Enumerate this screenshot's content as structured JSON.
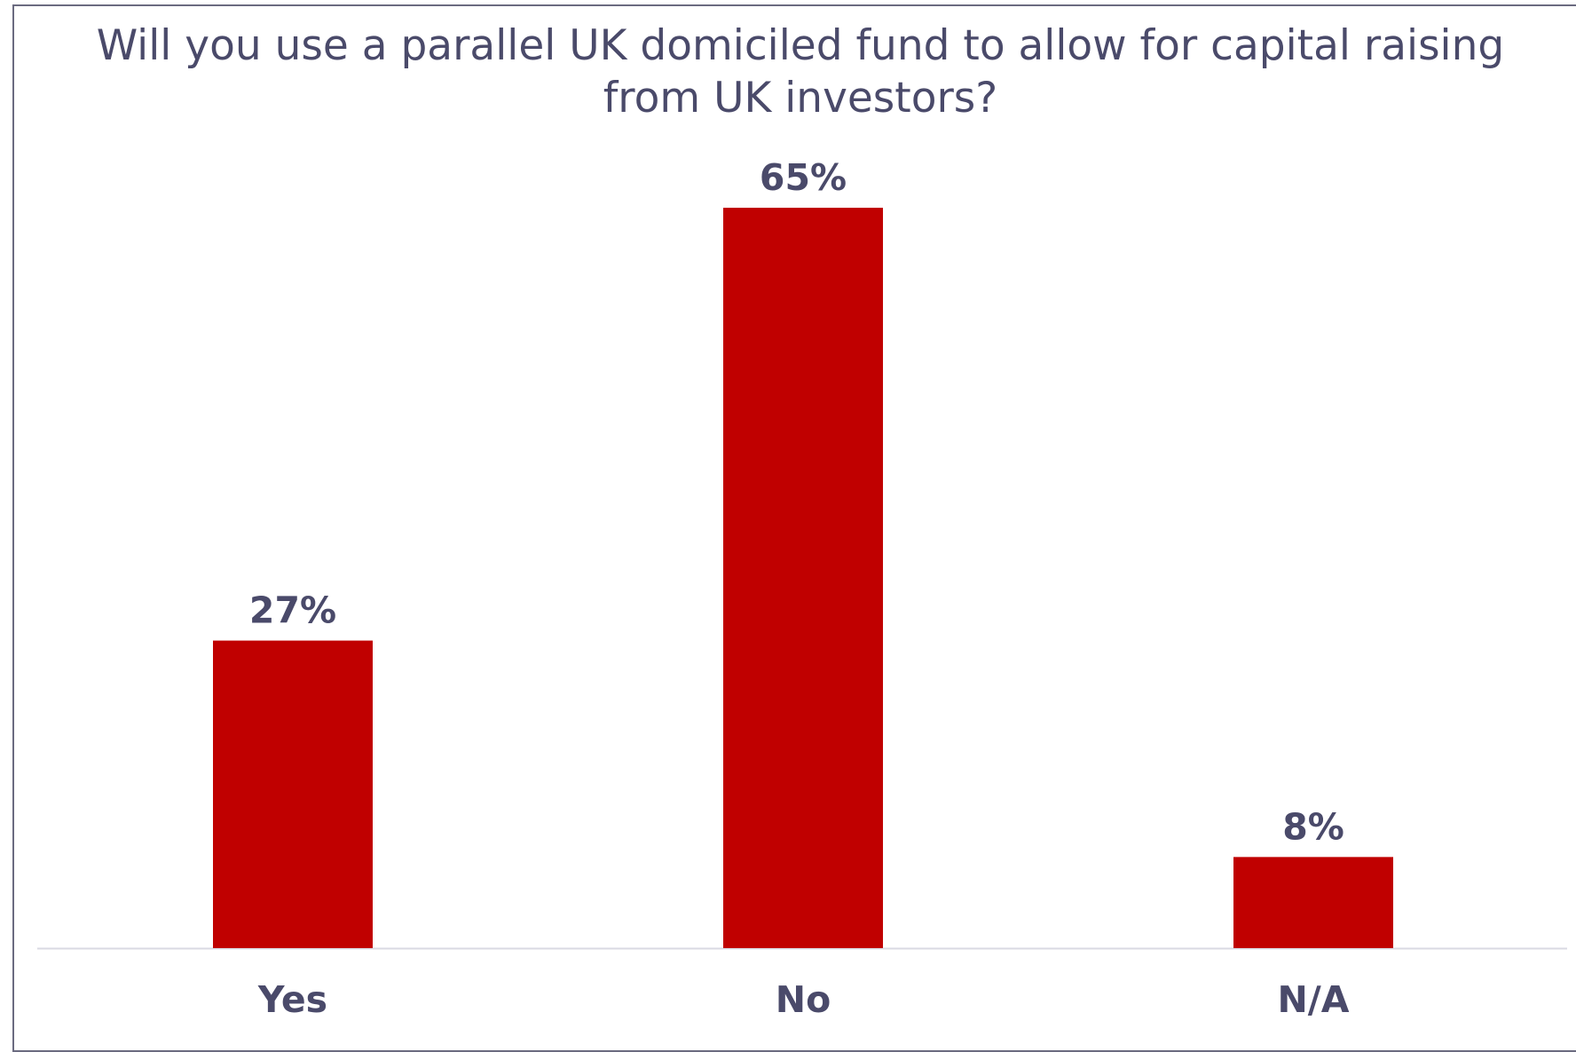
{
  "chart_data": {
    "type": "bar",
    "title": "Will you use a parallel UK domiciled fund to allow for capital raising from UK investors?",
    "categories": [
      "Yes",
      "No",
      "N/A"
    ],
    "values": [
      27,
      65,
      8
    ],
    "data_labels": [
      "27%",
      "65%",
      "8%"
    ],
    "ylim": [
      0,
      65
    ],
    "grid": false,
    "legend": "none",
    "bar_color": "#c00000",
    "label_color": "#4a4a6a"
  }
}
